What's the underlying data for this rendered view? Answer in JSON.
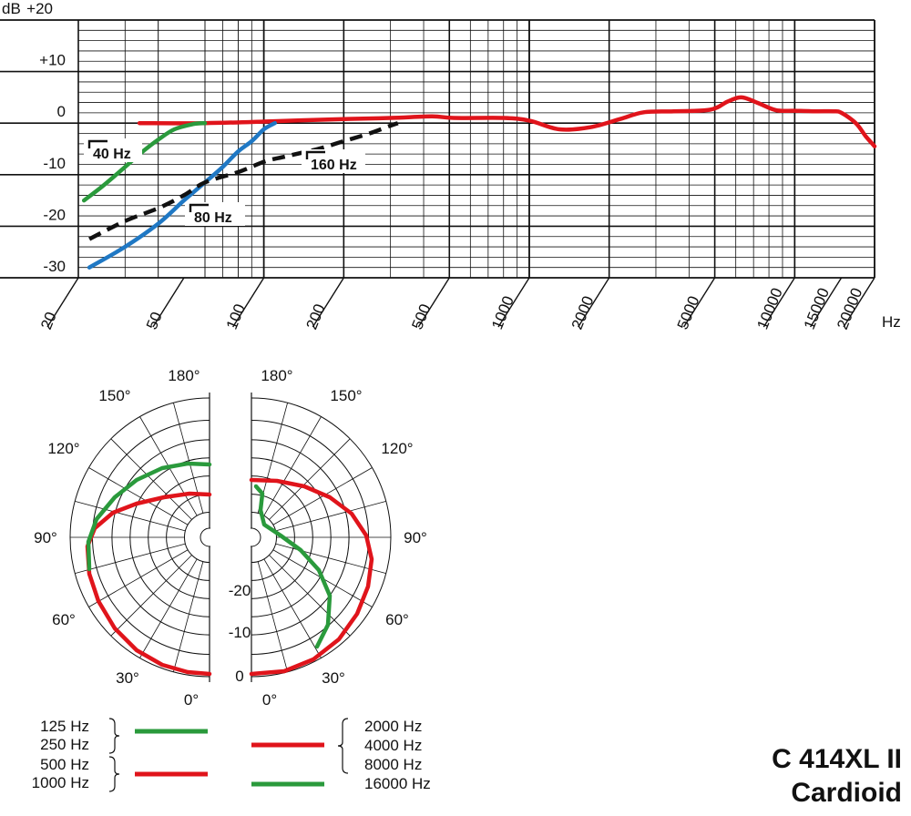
{
  "chart_data": [
    {
      "type": "line",
      "subtype": "frequency-response",
      "xscale": "log",
      "xlabel": "Hz",
      "ylabel": "dB",
      "ylim": [
        -30,
        20
      ],
      "xlim": [
        20,
        20000
      ],
      "y_ticks": [
        {
          "value": 20,
          "label": "+20"
        },
        {
          "value": 10,
          "label": "+10"
        },
        {
          "value": 0,
          "label": "0"
        },
        {
          "value": -10,
          "label": "-10"
        },
        {
          "value": -20,
          "label": "-20"
        },
        {
          "value": -30,
          "label": "-30"
        }
      ],
      "x_ticks": [
        {
          "value": 20,
          "label": "20"
        },
        {
          "value": 50,
          "label": "50"
        },
        {
          "value": 100,
          "label": "100"
        },
        {
          "value": 200,
          "label": "200"
        },
        {
          "value": 500,
          "label": "500"
        },
        {
          "value": 1000,
          "label": "1000"
        },
        {
          "value": 2000,
          "label": "2000"
        },
        {
          "value": 5000,
          "label": "5000"
        },
        {
          "value": 10000,
          "label": "10000"
        },
        {
          "value": 15000,
          "label": "15000"
        },
        {
          "value": 20000,
          "label": "20000"
        }
      ],
      "grid": true,
      "series": [
        {
          "name": "",
          "color": "#e0141b",
          "style": "solid",
          "points": [
            [
              34,
              0
            ],
            [
              60,
              0
            ],
            [
              100,
              0.3
            ],
            [
              200,
              0.8
            ],
            [
              300,
              1.0
            ],
            [
              430,
              1.3
            ],
            [
              520,
              1.0
            ],
            [
              800,
              1.0
            ],
            [
              1000,
              0.5
            ],
            [
              1300,
              -1.2
            ],
            [
              1700,
              -0.8
            ],
            [
              2200,
              0.8
            ],
            [
              2700,
              2.1
            ],
            [
              3500,
              2.3
            ],
            [
              4800,
              2.6
            ],
            [
              5600,
              4.2
            ],
            [
              6300,
              5.0
            ],
            [
              7200,
              4.0
            ],
            [
              8500,
              2.5
            ],
            [
              10000,
              2.4
            ],
            [
              12000,
              2.3
            ],
            [
              14000,
              2.3
            ],
            [
              15000,
              2.0
            ],
            [
              17000,
              0
            ],
            [
              18500,
              -2.5
            ],
            [
              20000,
              -4.5
            ]
          ]
        },
        {
          "name": "",
          "color": "#2a9a3c",
          "style": "solid",
          "points": [
            [
              21,
              -15
            ],
            [
              25,
              -12
            ],
            [
              30,
              -8.5
            ],
            [
              35,
              -5.5
            ],
            [
              40,
              -3.2
            ],
            [
              46,
              -1.2
            ],
            [
              54,
              -0.2
            ],
            [
              60,
              0
            ]
          ]
        },
        {
          "name": "",
          "color": "#1f78c4",
          "style": "solid",
          "points": [
            [
              22,
              -28
            ],
            [
              30,
              -24
            ],
            [
              40,
              -19.5
            ],
            [
              50,
              -15
            ],
            [
              60,
              -11.5
            ],
            [
              70,
              -8.5
            ],
            [
              80,
              -5.5
            ],
            [
              90,
              -3.5
            ],
            [
              100,
              -1.2
            ],
            [
              110,
              0
            ]
          ]
        },
        {
          "name": "",
          "color": "#111111",
          "style": "dashed",
          "points": [
            [
              22,
              -22.5
            ],
            [
              30,
              -19
            ],
            [
              40,
              -16.5
            ],
            [
              50,
              -14
            ],
            [
              60,
              -11.5
            ],
            [
              80,
              -9.5
            ],
            [
              100,
              -7.5
            ],
            [
              120,
              -6.5
            ],
            [
              160,
              -5
            ],
            [
              200,
              -3.5
            ],
            [
              250,
              -2
            ],
            [
              300,
              -0.5
            ],
            [
              320,
              0
            ]
          ]
        }
      ],
      "annotations": [
        {
          "text": "40 Hz",
          "points_to": "green curve"
        },
        {
          "text": "80 Hz",
          "points_to": "blue curve"
        },
        {
          "text": "160 Hz",
          "points_to": "black dashed curve"
        }
      ]
    },
    {
      "type": "polar",
      "angle_labels_left": [
        "180°",
        "150°",
        "120°",
        "90°",
        "60°",
        "30°",
        "0°"
      ],
      "angle_labels_right": [
        "180°",
        "150°",
        "120°",
        "90°",
        "60°",
        "30°",
        "0°"
      ],
      "radial_labels": [
        "-20",
        "-10",
        "0"
      ],
      "left_series": [
        {
          "color": "#2a9a3c",
          "group": "125 Hz / 250 Hz"
        },
        {
          "color": "#e0141b",
          "group": "500 Hz / 1000 Hz"
        }
      ],
      "right_series": [
        {
          "color": "#e0141b",
          "group": "2000 Hz / 4000 Hz / 8000 Hz"
        },
        {
          "color": "#2a9a3c",
          "group": "16000 Hz"
        }
      ],
      "legend": {
        "left_groups": [
          {
            "labels": [
              "125 Hz",
              "250 Hz"
            ],
            "color": "#2a9a3c"
          },
          {
            "labels": [
              "500 Hz",
              "1000 Hz"
            ],
            "color": "#e0141b"
          }
        ],
        "right_groups": [
          {
            "labels": [
              "2000 Hz",
              "4000 Hz",
              "8000 Hz"
            ],
            "color": "#e0141b"
          },
          {
            "labels": [
              "16000 Hz"
            ],
            "color": "#2a9a3c"
          }
        ]
      }
    }
  ],
  "model": {
    "name": "C 414XL II",
    "pattern": "Cardioid"
  }
}
